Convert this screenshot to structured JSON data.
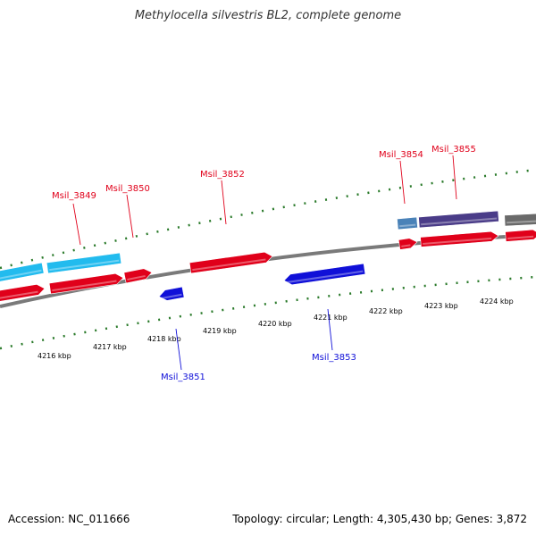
{
  "title": "Methylocella silvestris BL2, complete genome",
  "footer": {
    "accession": "Accession: NC_011666",
    "stats": "Topology: circular; Length: 4,305,430 bp; Genes: 3,872"
  },
  "colors": {
    "forward_cds": "#e0001a",
    "reverse_cds": "#1010d8",
    "feature_cyan": "#22bbee",
    "feature_steel": "#4a82b8",
    "feature_purple": "#4a3c88",
    "feature_gray": "#6a6a6a",
    "backbone": "#7a7a7a",
    "ticks": "#2a7a2a"
  },
  "gene_labels": [
    {
      "text": "Msil_3849",
      "strand": "forward"
    },
    {
      "text": "Msil_3850",
      "strand": "forward"
    },
    {
      "text": "Msil_3852",
      "strand": "forward"
    },
    {
      "text": "Msil_3854",
      "strand": "forward"
    },
    {
      "text": "Msil_3855",
      "strand": "forward"
    },
    {
      "text": "Msil_3851",
      "strand": "reverse"
    },
    {
      "text": "Msil_3853",
      "strand": "reverse"
    }
  ],
  "scale_ticks": [
    "4216 kbp",
    "4217 kbp",
    "4218 kbp",
    "4219 kbp",
    "4220 kbp",
    "4221 kbp",
    "4222 kbp",
    "4223 kbp",
    "4224 kbp"
  ]
}
